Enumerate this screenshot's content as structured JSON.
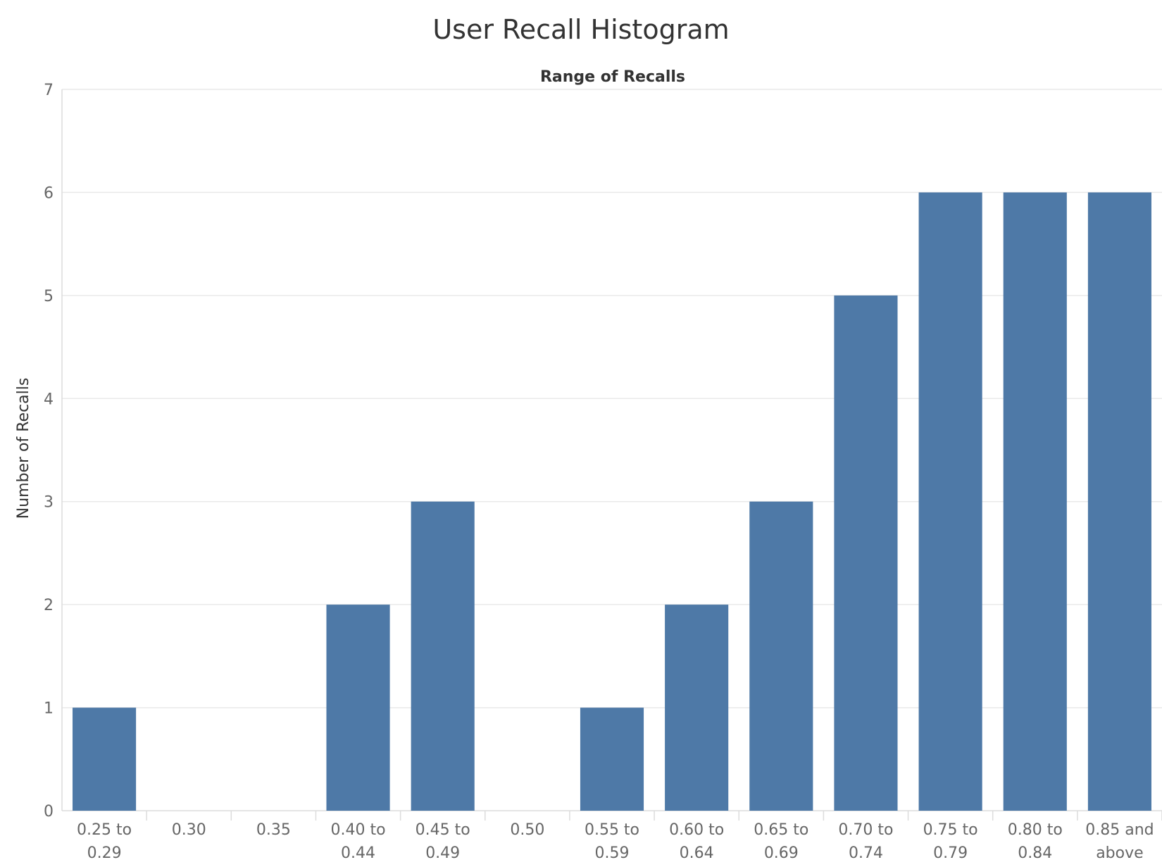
{
  "chart_data": {
    "type": "bar",
    "title": "User Recall Histogram",
    "top_label": "Range of Recalls",
    "ylabel": "Number of Recalls",
    "xlabel": "",
    "ylim": [
      0,
      7
    ],
    "yticks": [
      "0",
      "1",
      "2",
      "3",
      "4",
      "5",
      "6",
      "7"
    ],
    "grid": true,
    "bar_color": "#4e79a7",
    "categories": [
      [
        "0.25 to",
        "0.29"
      ],
      [
        "0.30"
      ],
      [
        "0.35"
      ],
      [
        "0.40 to",
        "0.44"
      ],
      [
        "0.45 to",
        "0.49"
      ],
      [
        "0.50"
      ],
      [
        "0.55 to",
        "0.59"
      ],
      [
        "0.60 to",
        "0.64"
      ],
      [
        "0.65 to",
        "0.69"
      ],
      [
        "0.70 to",
        "0.74"
      ],
      [
        "0.75 to",
        "0.79"
      ],
      [
        "0.80 to",
        "0.84"
      ],
      [
        "0.85 and",
        "above"
      ]
    ],
    "values": [
      1,
      0,
      0,
      2,
      3,
      0,
      1,
      2,
      3,
      5,
      6,
      6,
      6
    ]
  }
}
